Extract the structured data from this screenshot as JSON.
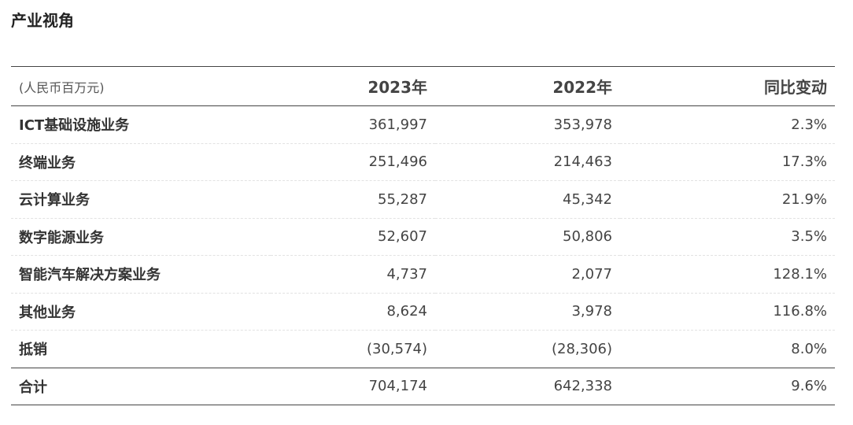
{
  "section": {
    "title": "产业视角"
  },
  "table": {
    "header": {
      "unit": "(人民币百万元)",
      "col_2023": "2023年",
      "col_2022": "2022年",
      "col_change": "同比变动"
    },
    "rows": [
      {
        "label": "ICT基础设施业务",
        "v2023": "361,997",
        "v2022": "353,978",
        "change": "2.3%"
      },
      {
        "label": "终端业务",
        "v2023": "251,496",
        "v2022": "214,463",
        "change": "17.3%"
      },
      {
        "label": "云计算业务",
        "v2023": "55,287",
        "v2022": "45,342",
        "change": "21.9%"
      },
      {
        "label": "数字能源业务",
        "v2023": "52,607",
        "v2022": "50,806",
        "change": "3.5%"
      },
      {
        "label": "智能汽车解决方案业务",
        "v2023": "4,737",
        "v2022": "2,077",
        "change": "128.1%"
      },
      {
        "label": "其他业务",
        "v2023": "8,624",
        "v2022": "3,978",
        "change": "116.8%"
      },
      {
        "label": "抵销",
        "v2023": "(30,574)",
        "v2022": "(28,306)",
        "change": "8.0%"
      }
    ],
    "total": {
      "label": "合计",
      "v2023": "704,174",
      "v2022": "642,338",
      "change": "9.6%"
    }
  }
}
